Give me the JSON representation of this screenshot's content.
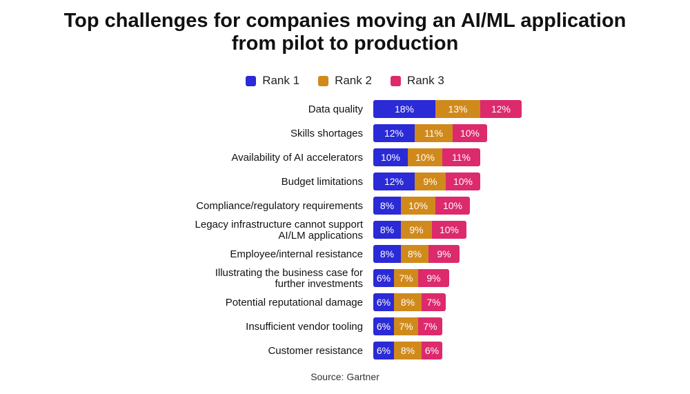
{
  "chart_data": {
    "type": "bar",
    "orientation": "horizontal",
    "stacked": true,
    "title": [
      "Top challenges for companies moving an AI/ML application",
      "from pilot to production"
    ],
    "source": "Source: Gartner",
    "legend_position": "top-center",
    "categories": [
      [
        "Data quality"
      ],
      [
        "Skills shortages"
      ],
      [
        "Availability of AI accelerators"
      ],
      [
        "Budget limitations"
      ],
      [
        "Compliance/regulatory requirements"
      ],
      [
        "Legacy infrastructure cannot support",
        "AI/LM applications"
      ],
      [
        "Employee/internal resistance"
      ],
      [
        "Illustrating the business case for",
        "further investments"
      ],
      [
        "Potential reputational damage"
      ],
      [
        "Insufficient vendor tooling"
      ],
      [
        "Customer resistance"
      ]
    ],
    "series": [
      {
        "name": "Rank 1",
        "color": "#2a2ad6",
        "values": [
          18,
          12,
          10,
          12,
          8,
          8,
          8,
          6,
          6,
          6,
          6
        ]
      },
      {
        "name": "Rank 2",
        "color": "#d08a1c",
        "values": [
          13,
          11,
          10,
          9,
          10,
          9,
          8,
          7,
          8,
          7,
          8
        ]
      },
      {
        "name": "Rank 3",
        "color": "#dc2a6d",
        "values": [
          12,
          10,
          11,
          10,
          10,
          10,
          9,
          9,
          7,
          7,
          6
        ]
      }
    ],
    "value_suffix": "%",
    "xlim": [
      0,
      100
    ],
    "grid": false
  }
}
